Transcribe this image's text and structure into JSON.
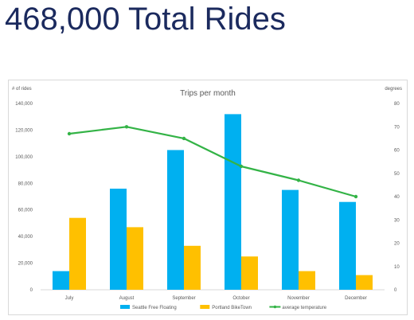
{
  "headline": "468,000 Total Rides",
  "chart_data": {
    "type": "bar",
    "title": "Trips per month",
    "ylabel": "# of rides",
    "y2label": "degrees",
    "categories": [
      "July",
      "August",
      "September",
      "October",
      "November",
      "December"
    ],
    "ylim": [
      0,
      140000
    ],
    "y2lim": [
      0,
      80
    ],
    "yticks": [
      "0",
      "20,000",
      "40,000",
      "60,000",
      "80,000",
      "100,000",
      "120,000",
      "140,000"
    ],
    "y2ticks": [
      "0",
      "10",
      "20",
      "30",
      "40",
      "50",
      "60",
      "70",
      "80"
    ],
    "grid": false,
    "legend_position": "bottom",
    "series": [
      {
        "name": "Seattle Free Floating",
        "kind": "bar",
        "axis": "left",
        "color": "#00b0f0",
        "values": [
          14000,
          76000,
          105000,
          132000,
          75000,
          66000
        ]
      },
      {
        "name": "Portland BikeTown",
        "kind": "bar",
        "axis": "left",
        "color": "#ffc000",
        "values": [
          54000,
          47000,
          33000,
          25000,
          14000,
          11000
        ]
      },
      {
        "name": "average temperature",
        "kind": "line",
        "axis": "right",
        "color": "#33b346",
        "values": [
          67,
          70,
          65,
          53,
          47,
          40
        ]
      }
    ]
  }
}
